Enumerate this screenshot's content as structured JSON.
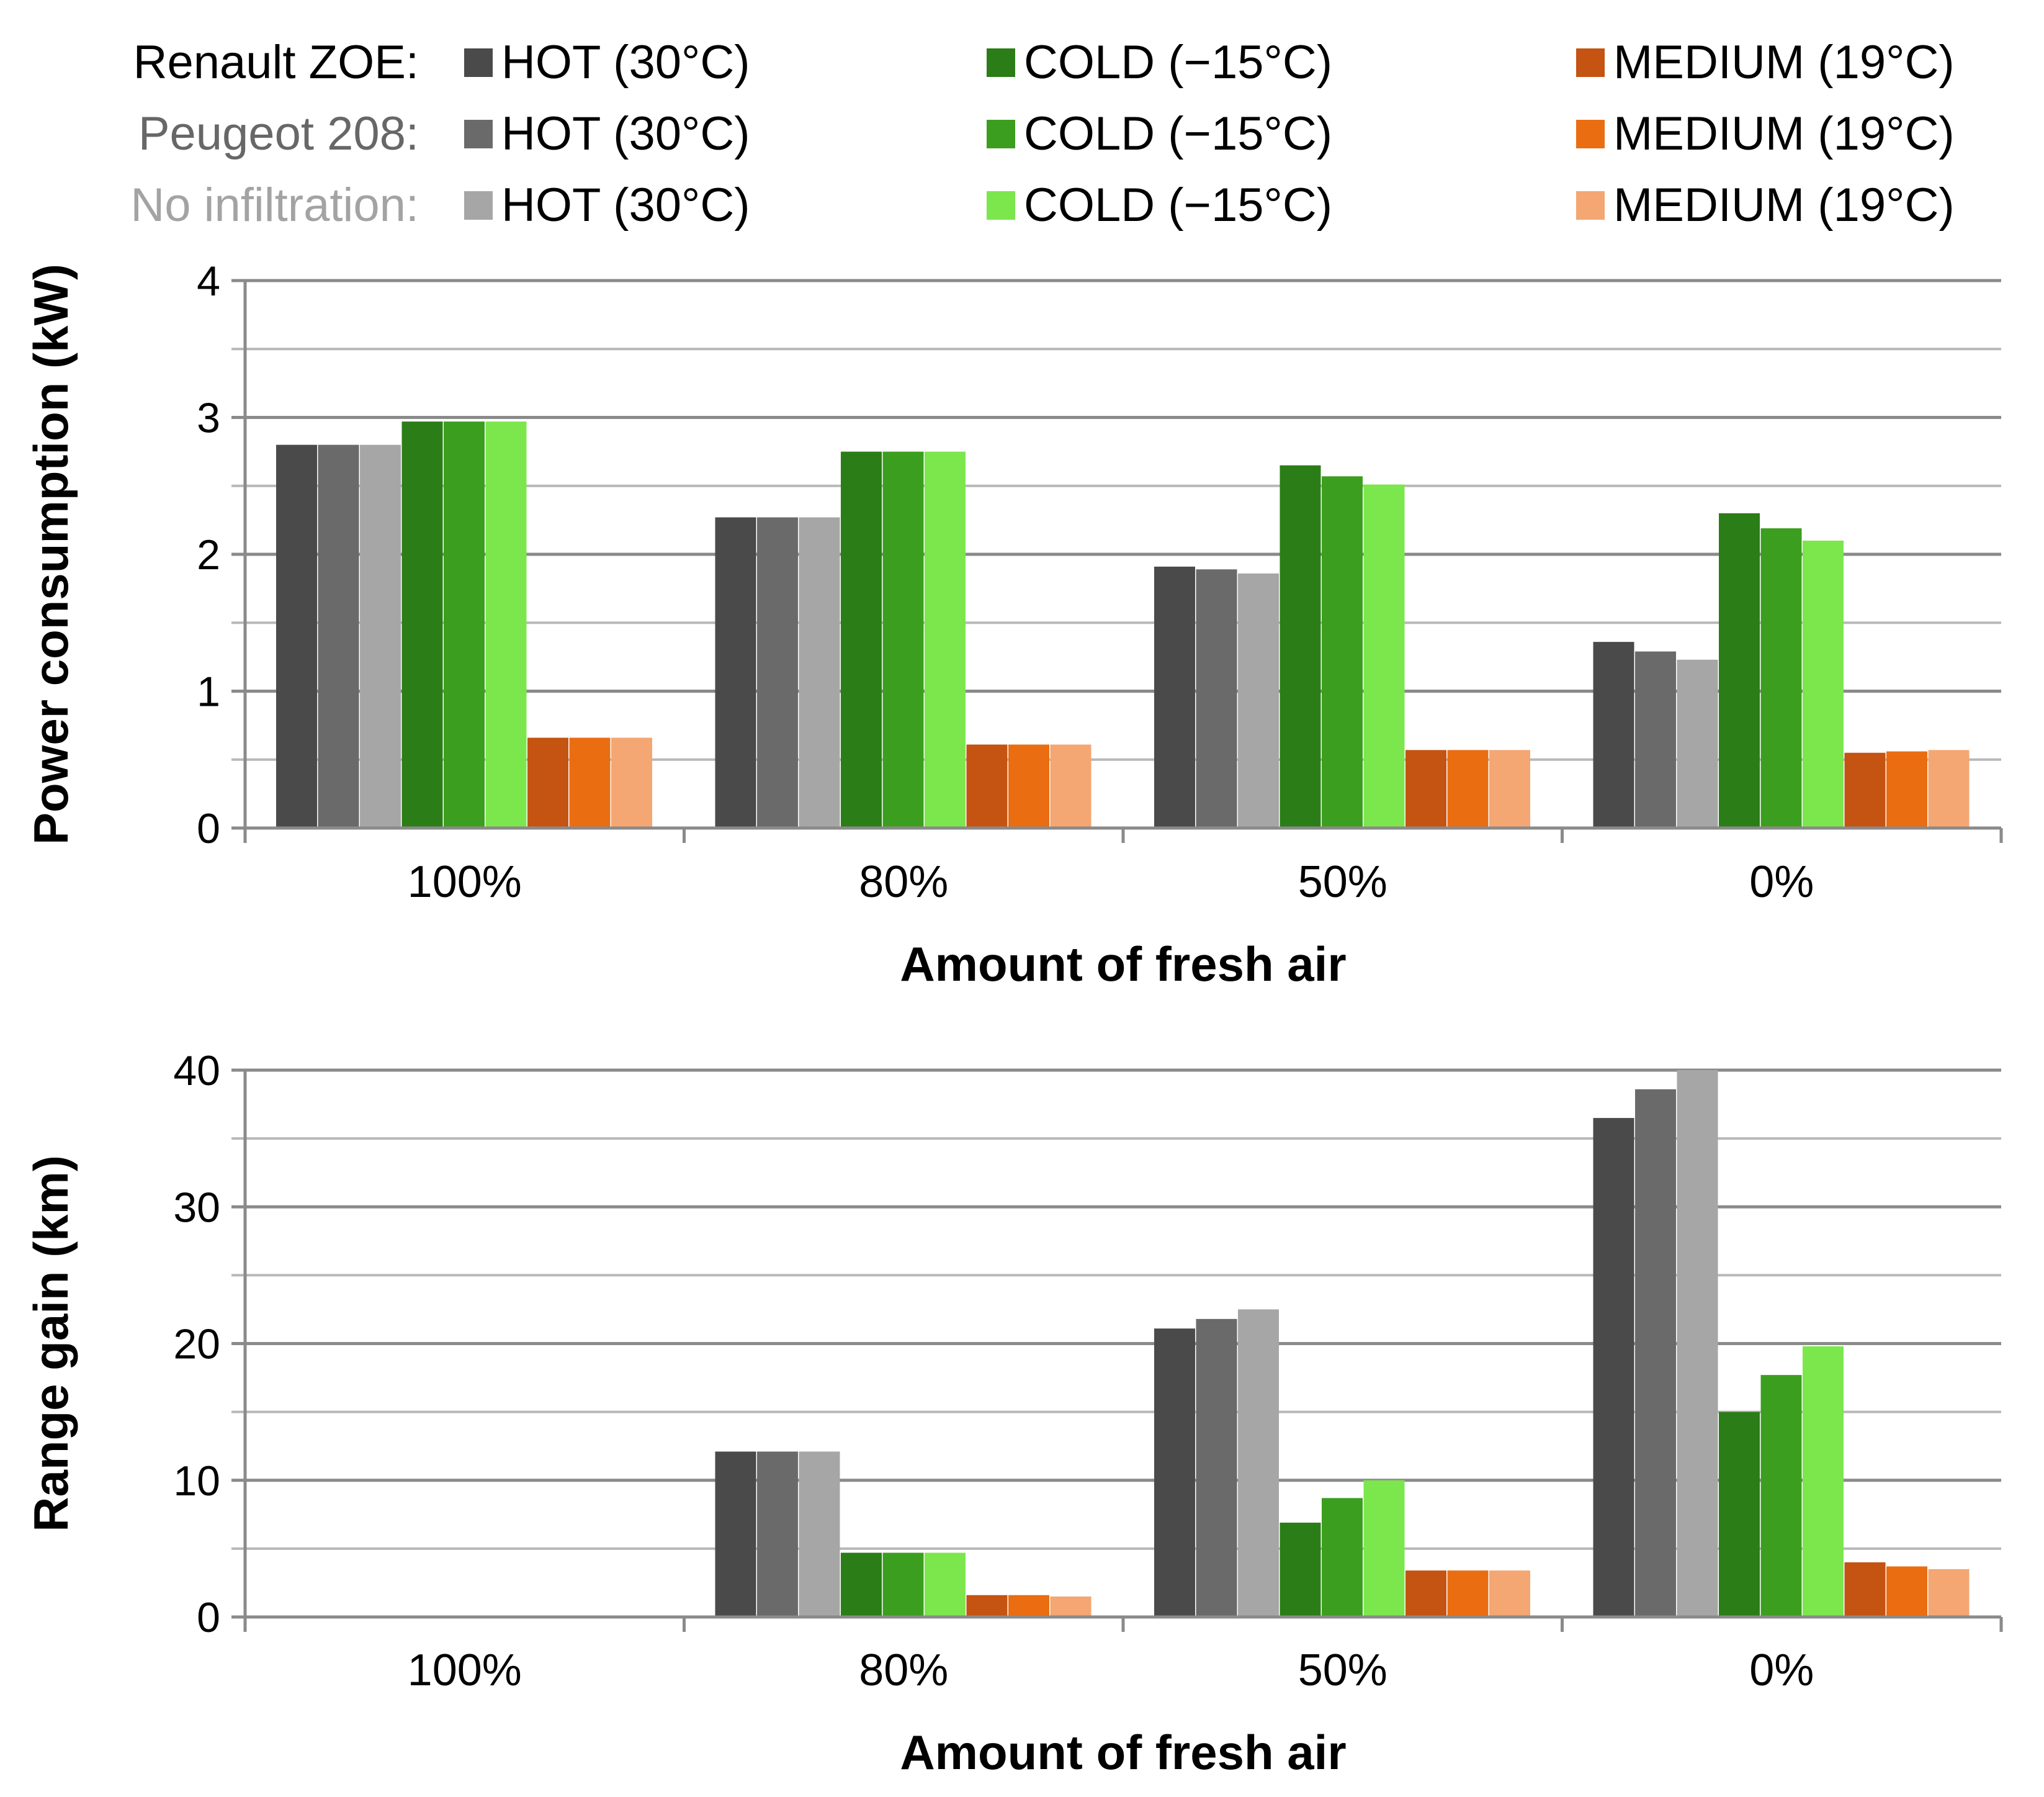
{
  "legend": {
    "groups": [
      {
        "label": "Renault ZOE:",
        "color": "#000000",
        "items": [
          {
            "label": "HOT (30°C)",
            "color": "#4a4a4a"
          },
          {
            "label": "COLD (−15°C)",
            "color": "#2b7d17"
          },
          {
            "label": "MEDIUM (19°C)",
            "color": "#c55312"
          }
        ]
      },
      {
        "label": "Peugeot 208:",
        "color": "#676767",
        "items": [
          {
            "label": "HOT (30°C)",
            "color": "#6a6a6a"
          },
          {
            "label": "COLD (−15°C)",
            "color": "#3c9e1e"
          },
          {
            "label": "MEDIUM (19°C)",
            "color": "#ea6d12"
          }
        ]
      },
      {
        "label": "No infiltration:",
        "color": "#a3a3a3",
        "items": [
          {
            "label": "HOT (30°C)",
            "color": "#a6a6a6"
          },
          {
            "label": "COLD (−15°C)",
            "color": "#7ce64d"
          },
          {
            "label": "MEDIUM (19°C)",
            "color": "#f4a673"
          }
        ]
      }
    ]
  },
  "chart_data": [
    {
      "type": "bar",
      "ylabel": "Power consumption (kW)",
      "xlabel": "Amount of fresh air",
      "categories": [
        "100%",
        "80%",
        "50%",
        "0%"
      ],
      "ylim": [
        0,
        4
      ],
      "yticks": [
        0,
        1,
        2,
        3,
        4
      ],
      "minor_step": 0.5,
      "series": [
        {
          "name": "Renault ZOE HOT (30°C)",
          "color": "#4a4a4a",
          "values": [
            2.8,
            2.27,
            1.91,
            1.36
          ]
        },
        {
          "name": "Peugeot 208 HOT (30°C)",
          "color": "#6a6a6a",
          "values": [
            2.8,
            2.27,
            1.89,
            1.29
          ]
        },
        {
          "name": "No infiltration HOT (30°C)",
          "color": "#a6a6a6",
          "values": [
            2.8,
            2.27,
            1.86,
            1.23
          ]
        },
        {
          "name": "Renault ZOE COLD (−15°C)",
          "color": "#2b7d17",
          "values": [
            2.97,
            2.75,
            2.65,
            2.3
          ]
        },
        {
          "name": "Peugeot 208 COLD (−15°C)",
          "color": "#3c9e1e",
          "values": [
            2.97,
            2.75,
            2.57,
            2.19
          ]
        },
        {
          "name": "No infiltration COLD (−15°C)",
          "color": "#7ce64d",
          "values": [
            2.97,
            2.75,
            2.51,
            2.1
          ]
        },
        {
          "name": "Renault ZOE MEDIUM (19°C)",
          "color": "#c55312",
          "values": [
            0.66,
            0.61,
            0.57,
            0.55
          ]
        },
        {
          "name": "Peugeot 208 MEDIUM (19°C)",
          "color": "#ea6d12",
          "values": [
            0.66,
            0.61,
            0.57,
            0.56
          ]
        },
        {
          "name": "No infiltration MEDIUM (19°C)",
          "color": "#f4a673",
          "values": [
            0.66,
            0.61,
            0.57,
            0.57
          ]
        }
      ]
    },
    {
      "type": "bar",
      "ylabel": "Range gain (km)",
      "xlabel": "Amount of fresh air",
      "categories": [
        "100%",
        "80%",
        "50%",
        "0%"
      ],
      "ylim": [
        0,
        40
      ],
      "yticks": [
        0,
        10,
        20,
        30,
        40
      ],
      "minor_step": 5,
      "series": [
        {
          "name": "Renault ZOE HOT (30°C)",
          "color": "#4a4a4a",
          "values": [
            0,
            12.1,
            21.1,
            36.5
          ]
        },
        {
          "name": "Peugeot 208 HOT (30°C)",
          "color": "#6a6a6a",
          "values": [
            0,
            12.1,
            21.8,
            38.6
          ]
        },
        {
          "name": "No infiltration HOT (30°C)",
          "color": "#a6a6a6",
          "values": [
            0,
            12.1,
            22.5,
            40.0
          ]
        },
        {
          "name": "Renault ZOE COLD (−15°C)",
          "color": "#2b7d17",
          "values": [
            0,
            4.7,
            6.9,
            15.0
          ]
        },
        {
          "name": "Peugeot 208 COLD (−15°C)",
          "color": "#3c9e1e",
          "values": [
            0,
            4.7,
            8.7,
            17.7
          ]
        },
        {
          "name": "No infiltration COLD (−15°C)",
          "color": "#7ce64d",
          "values": [
            0,
            4.7,
            10.0,
            19.8
          ]
        },
        {
          "name": "Renault ZOE MEDIUM (19°C)",
          "color": "#c55312",
          "values": [
            0,
            1.6,
            3.4,
            4.0
          ]
        },
        {
          "name": "Peugeot 208 MEDIUM (19°C)",
          "color": "#ea6d12",
          "values": [
            0,
            1.6,
            3.4,
            3.7
          ]
        },
        {
          "name": "No infiltration MEDIUM (19°C)",
          "color": "#f4a673",
          "values": [
            0,
            1.5,
            3.4,
            3.5
          ]
        }
      ]
    }
  ]
}
